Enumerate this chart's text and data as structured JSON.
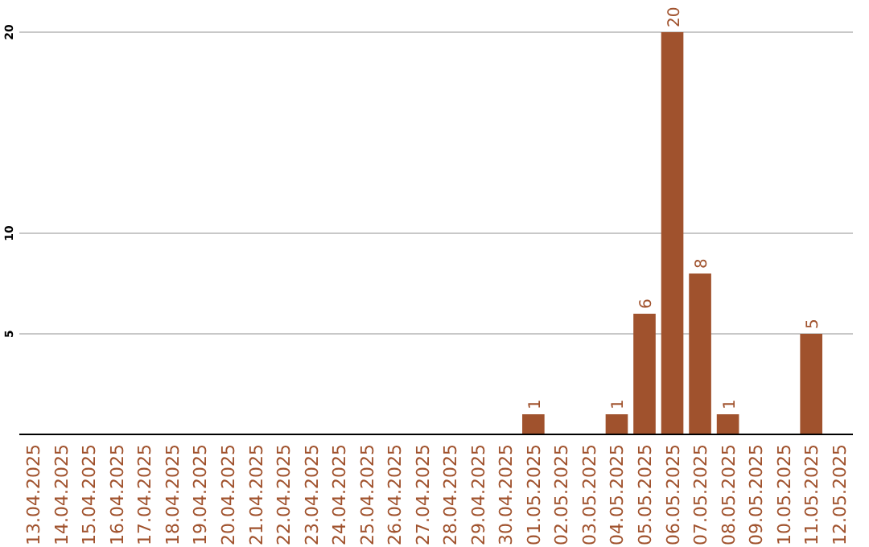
{
  "chart_data": {
    "type": "bar",
    "categories": [
      "13.04.2025",
      "14.04.2025",
      "15.04.2025",
      "16.04.2025",
      "17.04.2025",
      "18.04.2025",
      "19.04.2025",
      "20.04.2025",
      "21.04.2025",
      "22.04.2025",
      "23.04.2025",
      "24.04.2025",
      "25.04.2025",
      "26.04.2025",
      "27.04.2025",
      "28.04.2025",
      "29.04.2025",
      "30.04.2025",
      "01.05.2025",
      "02.05.2025",
      "03.05.2025",
      "04.05.2025",
      "05.05.2025",
      "06.05.2025",
      "07.05.2025",
      "08.05.2025",
      "09.05.2025",
      "10.05.2025",
      "11.05.2025",
      "12.05.2025"
    ],
    "values": [
      0,
      0,
      0,
      0,
      0,
      0,
      0,
      0,
      0,
      0,
      0,
      0,
      0,
      0,
      0,
      0,
      0,
      0,
      1,
      0,
      0,
      1,
      6,
      20,
      8,
      1,
      0,
      0,
      5,
      0
    ],
    "value_labels": [
      null,
      null,
      null,
      null,
      null,
      null,
      null,
      null,
      null,
      null,
      null,
      null,
      null,
      null,
      null,
      null,
      null,
      null,
      "1",
      null,
      null,
      "1",
      "6",
      "20",
      "8",
      "1",
      null,
      null,
      "5",
      null
    ],
    "color": "#a0522d",
    "ylim": [
      0,
      20
    ],
    "yticks": [
      5,
      10,
      20
    ],
    "grid": "y"
  }
}
